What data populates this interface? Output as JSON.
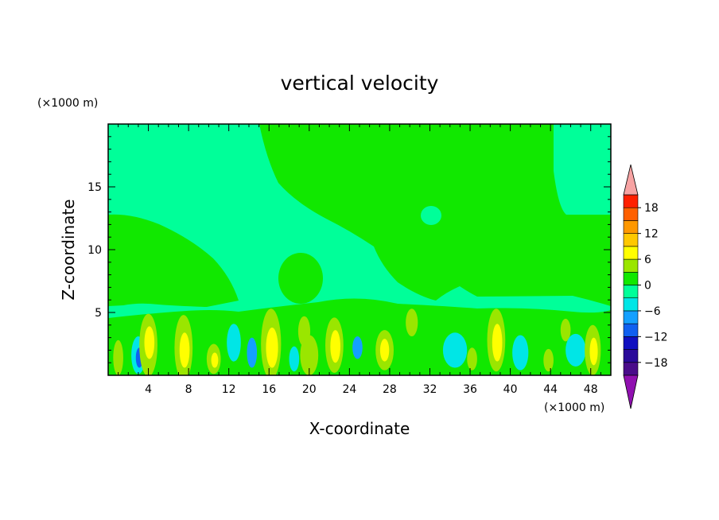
{
  "chart_data": {
    "type": "heatmap",
    "title": "vertical velocity",
    "xlabel": "X-coordinate",
    "ylabel": "Z-coordinate",
    "x_unit": "(×1000 m)",
    "y_unit": "(×1000 m)",
    "xlim": [
      0,
      50
    ],
    "ylim": [
      0,
      20
    ],
    "x_ticks": [
      "4",
      "8",
      "12",
      "16",
      "20",
      "24",
      "28",
      "32",
      "36",
      "40",
      "44",
      "48"
    ],
    "y_ticks": [
      "5",
      "10",
      "15"
    ],
    "colorbar": {
      "labels": [
        "18",
        "12",
        "6",
        "0",
        "−6",
        "−12",
        "−18"
      ],
      "levels": [
        -21,
        -18,
        -15,
        -12,
        -9,
        -6,
        -3,
        0,
        3,
        6,
        9,
        12,
        15,
        18,
        21
      ],
      "colors": [
        "#4a0c8a",
        "#2a0a9a",
        "#1010c0",
        "#1060f0",
        "#14a0ff",
        "#00e6e6",
        "#00ff99",
        "#11e800",
        "#9ae600",
        "#ffff00",
        "#ffc800",
        "#ff9800",
        "#ff6000",
        "#ff2000"
      ],
      "over_color": "#f7a3a3",
      "under_color": "#9010b0"
    },
    "background_level_color": "#00ff99",
    "regions": [
      {
        "level": "0 to 3",
        "color": "#11e800",
        "desc": "upper right"
      },
      {
        "level": "0 to 3",
        "color": "#11e800",
        "desc": "left mid"
      },
      {
        "level": "3 to 9",
        "color": "#ffff00",
        "desc": "updraft columns near surface"
      },
      {
        "level": "-6 to -3",
        "color": "#00e6e6",
        "desc": "downdrafts near surface"
      },
      {
        "level": "-12 to -9",
        "color": "#1060f0",
        "desc": "strong downdraft cores"
      }
    ],
    "grid": false,
    "legend": "right"
  }
}
